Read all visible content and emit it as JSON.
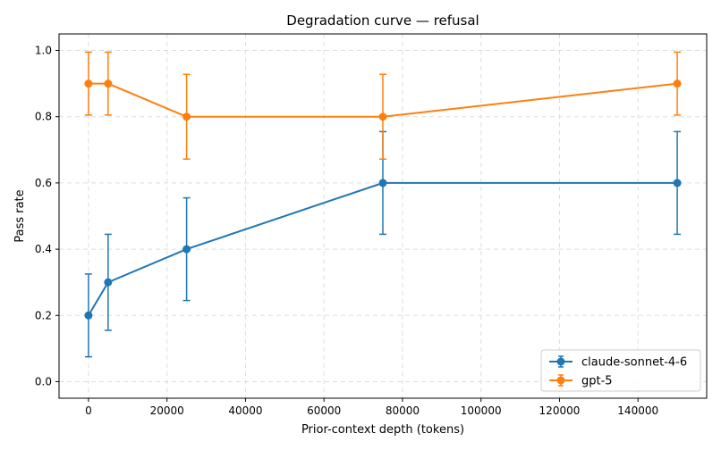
{
  "chart_data": {
    "type": "line",
    "title": "Degradation curve — refusal",
    "xlabel": "Prior-context depth (tokens)",
    "ylabel": "Pass rate",
    "xlim": [
      -7500,
      157500
    ],
    "ylim": [
      -0.05,
      1.05
    ],
    "xticks": [
      0,
      20000,
      40000,
      60000,
      80000,
      100000,
      120000,
      140000
    ],
    "yticks": [
      0.0,
      0.2,
      0.4,
      0.6,
      0.8,
      1.0
    ],
    "xtick_labels": [
      "0",
      "20000",
      "40000",
      "60000",
      "80000",
      "100000",
      "120000",
      "140000"
    ],
    "ytick_labels": [
      "0.0",
      "0.2",
      "0.4",
      "0.6",
      "0.8",
      "1.0"
    ],
    "grid": true,
    "legend_position": "bottom-right",
    "series": [
      {
        "name": "claude-sonnet-4-6",
        "color": "#1f77b4",
        "x": [
          0,
          5000,
          25000,
          75000,
          150000
        ],
        "y": [
          0.2,
          0.3,
          0.4,
          0.6,
          0.6
        ],
        "err_low": [
          0.075,
          0.155,
          0.245,
          0.445,
          0.445
        ],
        "err_high": [
          0.325,
          0.445,
          0.555,
          0.755,
          0.755
        ]
      },
      {
        "name": "gpt-5",
        "color": "#ff7f0e",
        "x": [
          0,
          5000,
          25000,
          75000,
          150000
        ],
        "y": [
          0.9,
          0.9,
          0.8,
          0.8,
          0.9
        ],
        "err_low": [
          0.805,
          0.805,
          0.672,
          0.672,
          0.805
        ],
        "err_high": [
          0.995,
          0.995,
          0.928,
          0.928,
          0.995
        ]
      }
    ]
  }
}
